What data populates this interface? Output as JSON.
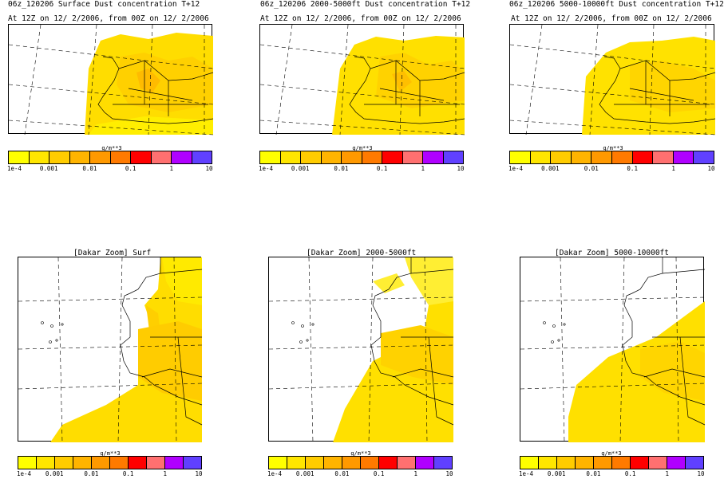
{
  "panels": [
    {
      "title": "06z_120206 Surface Dust concentration T+12",
      "subtitle": "At 12Z on 12/ 2/2006, from 00Z on 12/ 2/2006"
    },
    {
      "title": "06z_120206 2000-5000ft Dust concentration T+12",
      "subtitle": "At 12Z on 12/ 2/2006, from 00Z on 12/ 2/2006"
    },
    {
      "title": "06z_120206 5000-10000ft Dust concentration T+12",
      "subtitle": "At 12Z on 12/ 2/2006, from 00Z on 12/ 2/2006"
    },
    {
      "title": "[Dakar Zoom] Surf"
    },
    {
      "title": "[Dakar Zoom] 2000-5000ft"
    },
    {
      "title": "[Dakar Zoom] 5000-10000ft"
    }
  ],
  "colorbar": {
    "unit": "g/m**3",
    "tick_labels": [
      "1e-4",
      "0.001",
      "0.01",
      "0.1",
      "1",
      "10"
    ],
    "colors": [
      "#ffff00",
      "#ffe600",
      "#ffcc00",
      "#ffb400",
      "#ff9900",
      "#ff7a00",
      "#ff0000",
      "#ff7070",
      "#b000ff",
      "#6040ff"
    ]
  }
}
